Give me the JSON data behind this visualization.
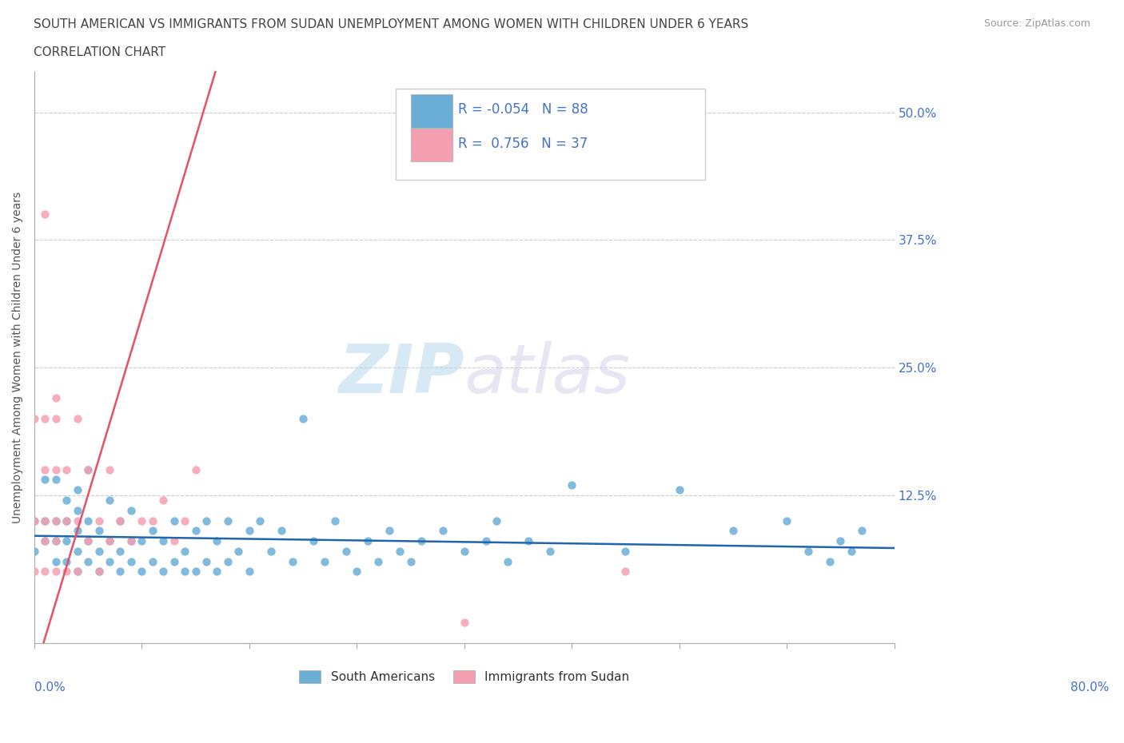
{
  "title_line1": "SOUTH AMERICAN VS IMMIGRANTS FROM SUDAN UNEMPLOYMENT AMONG WOMEN WITH CHILDREN UNDER 6 YEARS",
  "title_line2": "CORRELATION CHART",
  "source": "Source: ZipAtlas.com",
  "ylabel": "Unemployment Among Women with Children Under 6 years",
  "ytick_labels": [
    "12.5%",
    "25.0%",
    "37.5%",
    "50.0%"
  ],
  "ytick_values": [
    0.125,
    0.25,
    0.375,
    0.5
  ],
  "xmin": 0.0,
  "xmax": 0.8,
  "ymin": -0.02,
  "ymax": 0.54,
  "blue_R": -0.054,
  "blue_N": 88,
  "pink_R": 0.756,
  "pink_N": 37,
  "blue_color": "#6aaed6",
  "pink_color": "#f4a0b0",
  "blue_line_color": "#2166ac",
  "pink_line_color": "#e8506a",
  "watermark_zip": "ZIP",
  "watermark_atlas": "atlas",
  "legend_label_blue": "South Americans",
  "legend_label_pink": "Immigrants from Sudan",
  "blue_scatter_x": [
    0.0,
    0.0,
    0.01,
    0.01,
    0.01,
    0.02,
    0.02,
    0.02,
    0.02,
    0.03,
    0.03,
    0.03,
    0.03,
    0.04,
    0.04,
    0.04,
    0.04,
    0.04,
    0.05,
    0.05,
    0.05,
    0.05,
    0.06,
    0.06,
    0.06,
    0.07,
    0.07,
    0.07,
    0.08,
    0.08,
    0.08,
    0.09,
    0.09,
    0.09,
    0.1,
    0.1,
    0.11,
    0.11,
    0.12,
    0.12,
    0.13,
    0.13,
    0.14,
    0.14,
    0.15,
    0.15,
    0.16,
    0.16,
    0.17,
    0.17,
    0.18,
    0.18,
    0.19,
    0.2,
    0.2,
    0.21,
    0.22,
    0.23,
    0.24,
    0.25,
    0.26,
    0.27,
    0.28,
    0.29,
    0.3,
    0.31,
    0.32,
    0.33,
    0.34,
    0.35,
    0.36,
    0.38,
    0.4,
    0.42,
    0.43,
    0.44,
    0.46,
    0.48,
    0.5,
    0.55,
    0.6,
    0.65,
    0.7,
    0.72,
    0.74,
    0.75,
    0.76,
    0.77
  ],
  "blue_scatter_y": [
    0.07,
    0.1,
    0.08,
    0.1,
    0.14,
    0.06,
    0.08,
    0.1,
    0.14,
    0.06,
    0.08,
    0.1,
    0.12,
    0.05,
    0.07,
    0.09,
    0.11,
    0.13,
    0.06,
    0.08,
    0.1,
    0.15,
    0.05,
    0.07,
    0.09,
    0.06,
    0.08,
    0.12,
    0.05,
    0.07,
    0.1,
    0.06,
    0.08,
    0.11,
    0.05,
    0.08,
    0.06,
    0.09,
    0.05,
    0.08,
    0.06,
    0.1,
    0.05,
    0.07,
    0.05,
    0.09,
    0.06,
    0.1,
    0.05,
    0.08,
    0.06,
    0.1,
    0.07,
    0.05,
    0.09,
    0.1,
    0.07,
    0.09,
    0.06,
    0.2,
    0.08,
    0.06,
    0.1,
    0.07,
    0.05,
    0.08,
    0.06,
    0.09,
    0.07,
    0.06,
    0.08,
    0.09,
    0.07,
    0.08,
    0.1,
    0.06,
    0.08,
    0.07,
    0.135,
    0.07,
    0.13,
    0.09,
    0.1,
    0.07,
    0.06,
    0.08,
    0.07,
    0.09
  ],
  "pink_scatter_x": [
    0.01,
    0.01,
    0.02,
    0.0,
    0.0,
    0.0,
    0.01,
    0.01,
    0.01,
    0.01,
    0.02,
    0.02,
    0.02,
    0.02,
    0.02,
    0.03,
    0.03,
    0.03,
    0.04,
    0.04,
    0.04,
    0.05,
    0.05,
    0.06,
    0.06,
    0.07,
    0.07,
    0.08,
    0.09,
    0.1,
    0.11,
    0.12,
    0.13,
    0.14,
    0.15,
    0.4,
    0.55
  ],
  "pink_scatter_y": [
    0.4,
    0.2,
    0.22,
    0.05,
    0.1,
    0.2,
    0.05,
    0.08,
    0.1,
    0.15,
    0.05,
    0.08,
    0.1,
    0.15,
    0.2,
    0.05,
    0.1,
    0.15,
    0.05,
    0.1,
    0.2,
    0.08,
    0.15,
    0.05,
    0.1,
    0.08,
    0.15,
    0.1,
    0.08,
    0.1,
    0.1,
    0.12,
    0.08,
    0.1,
    0.15,
    0.0,
    0.05
  ]
}
